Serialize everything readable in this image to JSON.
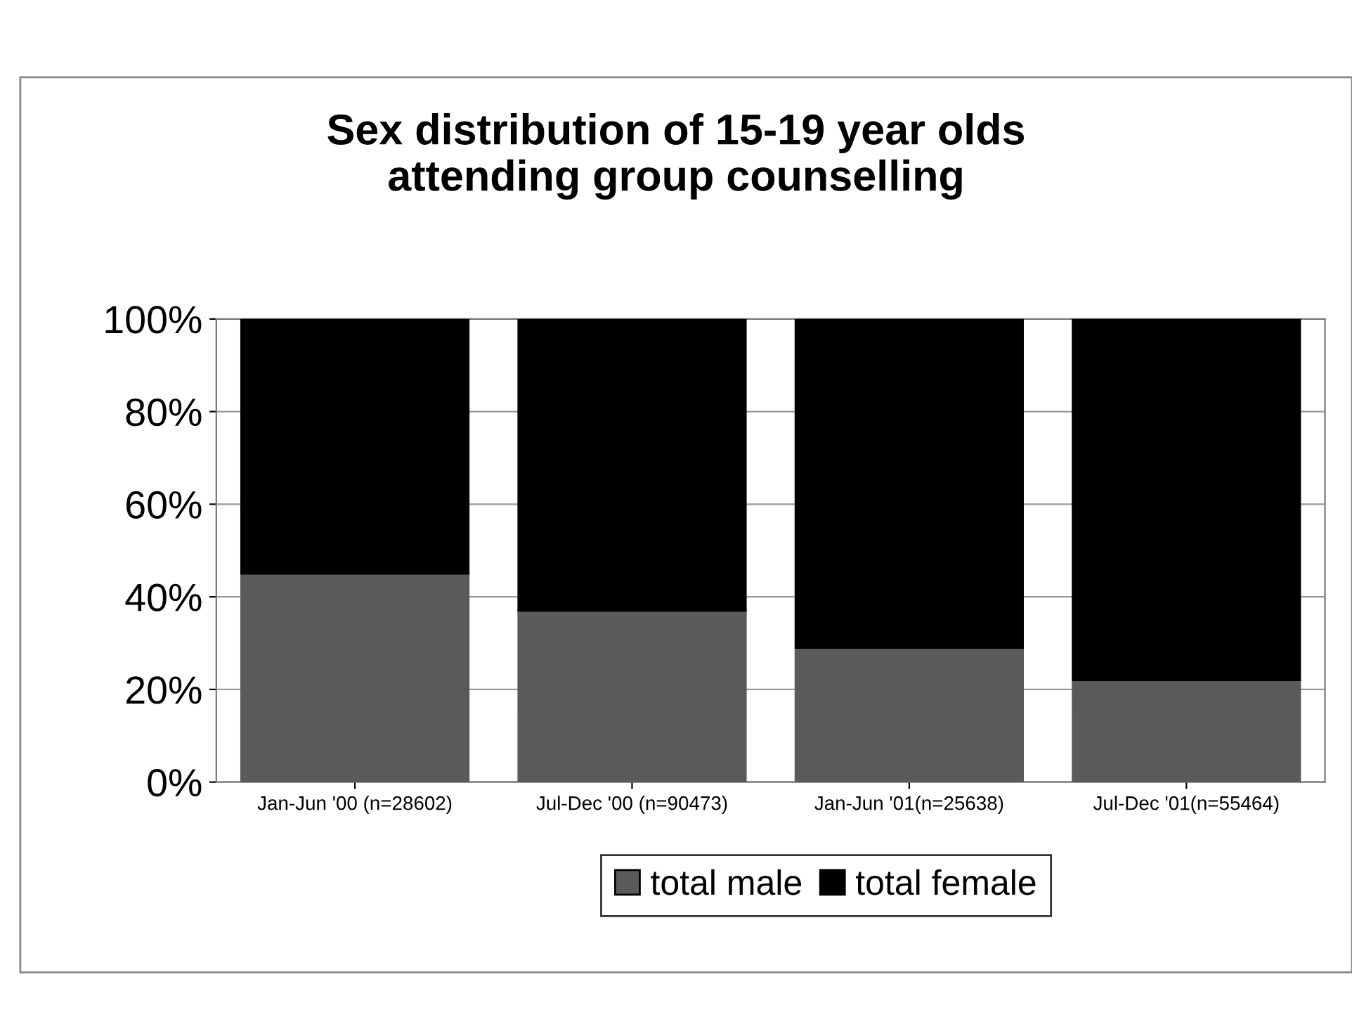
{
  "chart_data": {
    "type": "bar",
    "title": "Sex distribution of 15-19 year olds\nattending group counselling",
    "categories": [
      "Jan-Jun '00 (n=28602)",
      "Jul-Dec '00 (n=90473)",
      "Jan-Jun '01(n=25638)",
      "Jul-Dec '01(n=55464)"
    ],
    "stacked": true,
    "series": [
      {
        "name": "total male",
        "color": "#5a5a5a",
        "values": [
          45,
          37,
          29,
          22
        ]
      },
      {
        "name": "total female",
        "color": "#000000",
        "values": [
          55,
          63,
          71,
          78
        ]
      }
    ],
    "ylim": [
      0,
      100
    ],
    "yticks": [
      {
        "value": 0,
        "label": "0%"
      },
      {
        "value": 20,
        "label": "20%"
      },
      {
        "value": 40,
        "label": "40%"
      },
      {
        "value": 60,
        "label": "60%"
      },
      {
        "value": 80,
        "label": "80%"
      },
      {
        "value": 100,
        "label": "100%"
      }
    ],
    "grid": "y",
    "legend": "bottom"
  }
}
